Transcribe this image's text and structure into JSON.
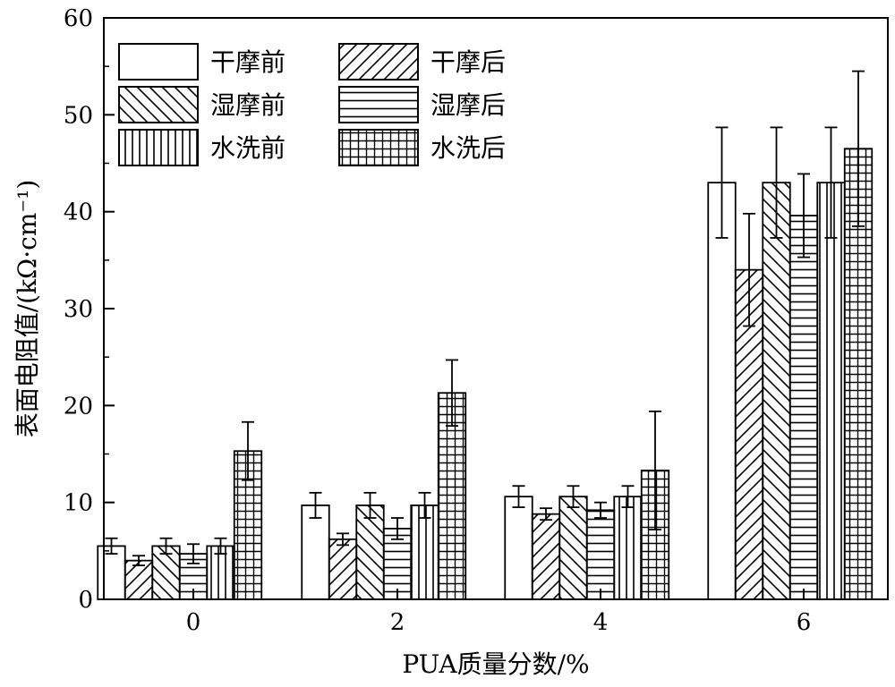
{
  "chart_data": {
    "type": "bar",
    "xlabel": "PUA质量分数/%",
    "ylabel": "表面电阻值/(kΩ·cm⁻¹)",
    "ylim": [
      0,
      60
    ],
    "yticks": [
      0,
      10,
      20,
      30,
      40,
      50,
      60
    ],
    "categories": [
      "0",
      "2",
      "4",
      "6"
    ],
    "legend_position": "top-left",
    "legend_columns": 2,
    "series": [
      {
        "name": "干摩前",
        "pattern": "none",
        "values": [
          5.5,
          9.7,
          10.6,
          43.0
        ],
        "errors": [
          0.8,
          1.3,
          1.1,
          5.7
        ]
      },
      {
        "name": "干摩后",
        "pattern": "diagonal-up",
        "values": [
          4.0,
          6.2,
          8.8,
          34.0
        ],
        "errors": [
          0.5,
          0.6,
          0.6,
          5.8
        ]
      },
      {
        "name": "湿摩前",
        "pattern": "diagonal-down",
        "values": [
          5.5,
          9.7,
          10.6,
          43.0
        ],
        "errors": [
          0.8,
          1.3,
          1.1,
          5.7
        ]
      },
      {
        "name": "湿摩后",
        "pattern": "horizontal",
        "values": [
          4.7,
          7.3,
          9.2,
          39.6
        ],
        "errors": [
          1.0,
          1.1,
          0.8,
          4.3
        ]
      },
      {
        "name": "水洗前",
        "pattern": "vertical",
        "values": [
          5.5,
          9.7,
          10.6,
          43.0
        ],
        "errors": [
          0.8,
          1.3,
          1.1,
          5.7
        ]
      },
      {
        "name": "水洗后",
        "pattern": "grid",
        "values": [
          15.3,
          21.3,
          13.3,
          46.5
        ],
        "errors": [
          3.0,
          3.4,
          6.1,
          8.0
        ]
      }
    ]
  }
}
